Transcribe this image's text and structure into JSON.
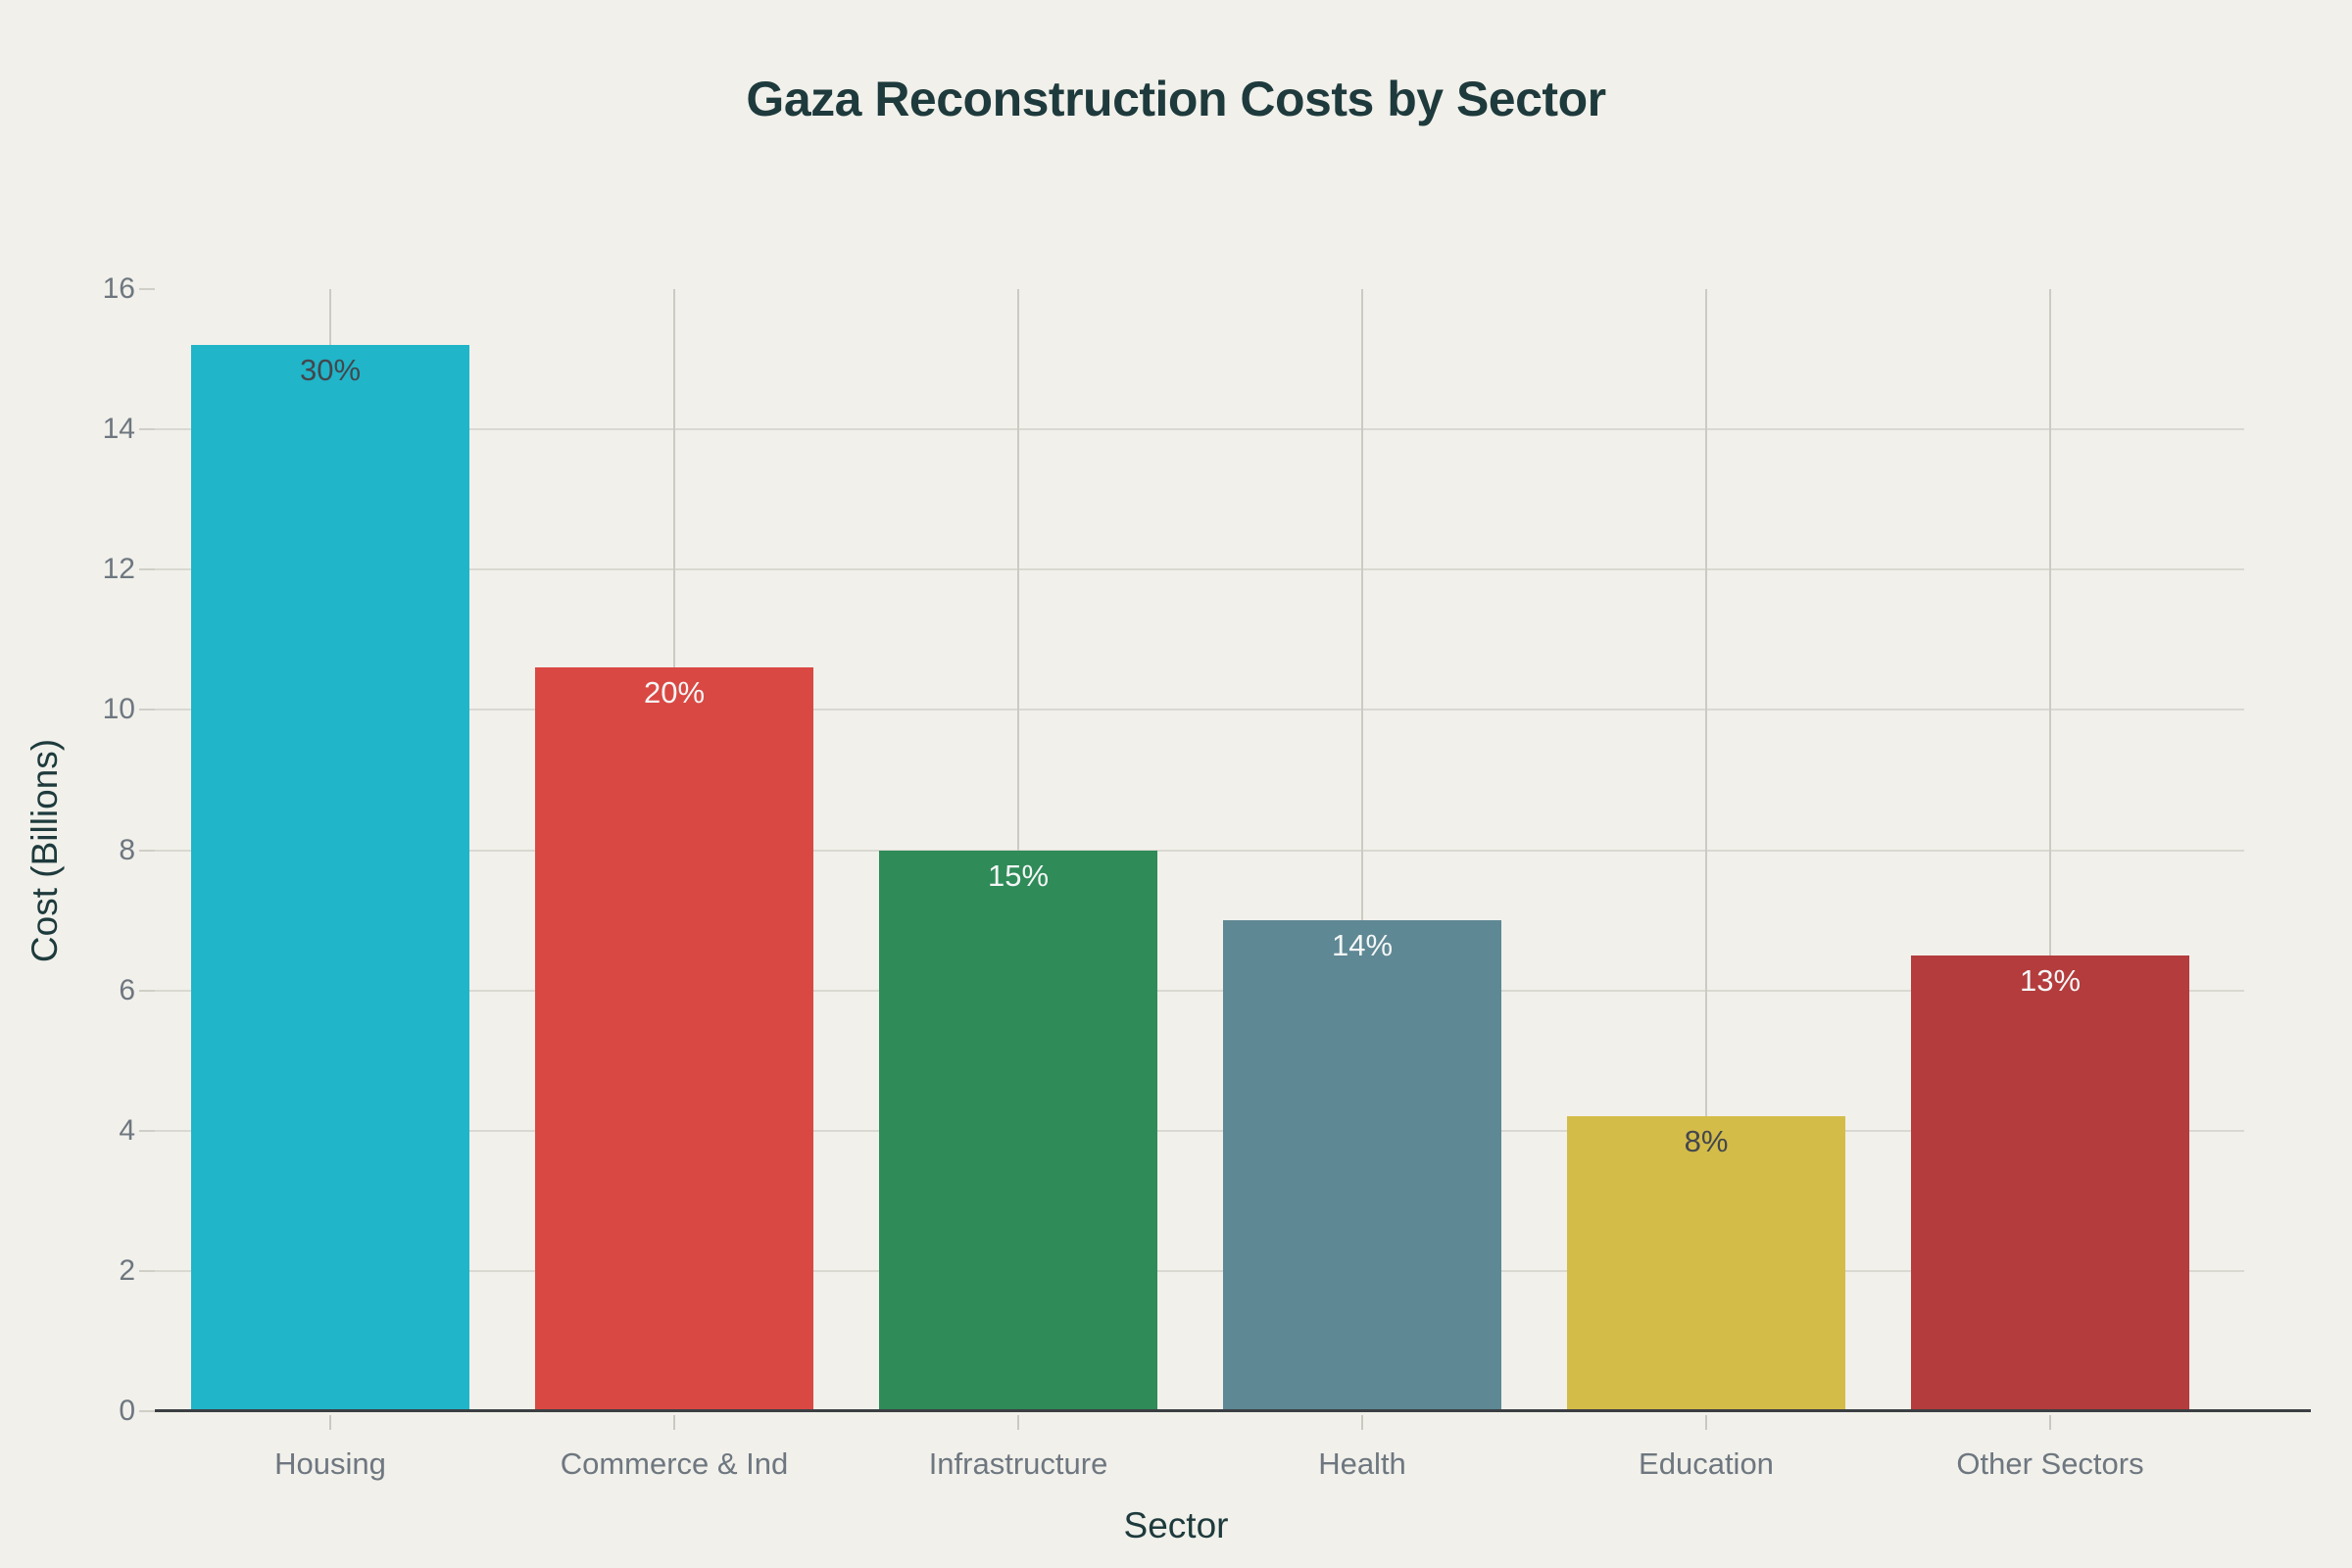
{
  "page": {
    "background_color": "#f1f0ea",
    "title_color": "#1e3a3c",
    "tick_label_color": "#6e7780",
    "gridline_color": "#d9d8d1",
    "axis_line_color": "#3b3f43"
  },
  "chart_data": {
    "type": "bar",
    "title": "Gaza Reconstruction Costs by Sector",
    "xlabel": "Sector",
    "ylabel": "Cost (Billions)",
    "categories": [
      "Housing",
      "Commerce & Ind",
      "Infrastructure",
      "Health",
      "Education",
      "Other Sectors"
    ],
    "values": [
      15.2,
      10.6,
      8.0,
      7.0,
      4.2,
      6.5
    ],
    "bar_labels": [
      "30%",
      "20%",
      "15%",
      "14%",
      "8%",
      "13%"
    ],
    "bar_colors": [
      "#20b5c9",
      "#da4843",
      "#2f8b57",
      "#5e8894",
      "#d4bc49",
      "#b43c3c"
    ],
    "bar_label_colors": [
      "#43474d",
      "#f4f6f6",
      "#f4f6f6",
      "#f4f6f6",
      "#43474d",
      "#f4f6f6"
    ],
    "ylim": [
      0,
      16
    ],
    "yticks": [
      0,
      2,
      4,
      6,
      8,
      10,
      12,
      14,
      16
    ],
    "grid": true,
    "legend_position": "none"
  }
}
